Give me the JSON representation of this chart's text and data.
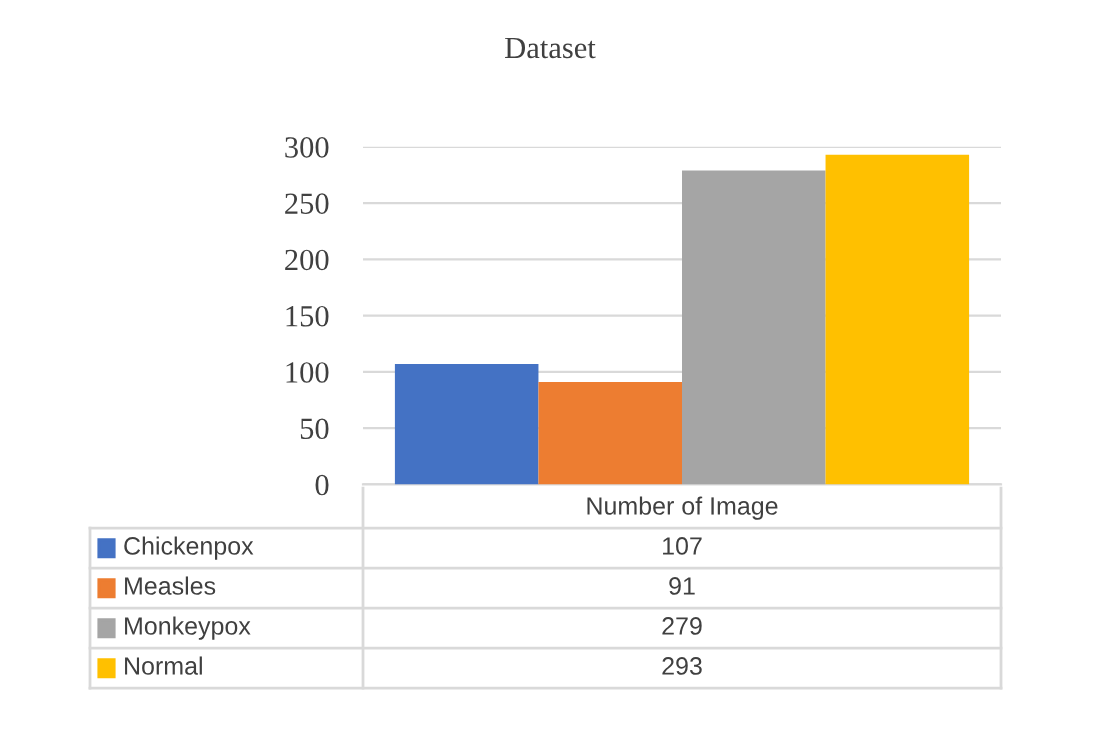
{
  "chart_data": {
    "type": "bar",
    "title": "Dataset",
    "categories": [
      "Number of Image"
    ],
    "series": [
      {
        "name": "Chickenpox",
        "color": "#4472c4",
        "values": [
          107
        ]
      },
      {
        "name": "Measles",
        "color": "#ed7d31",
        "values": [
          91
        ]
      },
      {
        "name": "Monkeypox",
        "color": "#a5a5a5",
        "values": [
          279
        ]
      },
      {
        "name": "Normal",
        "color": "#ffc000",
        "values": [
          293
        ]
      }
    ],
    "ylim": [
      0,
      300
    ],
    "yticks": [
      0,
      50,
      100,
      150,
      200,
      250,
      300
    ],
    "grid": "y",
    "legend": "bottom",
    "annotations": [
      "107",
      "91",
      "279",
      "293"
    ]
  }
}
